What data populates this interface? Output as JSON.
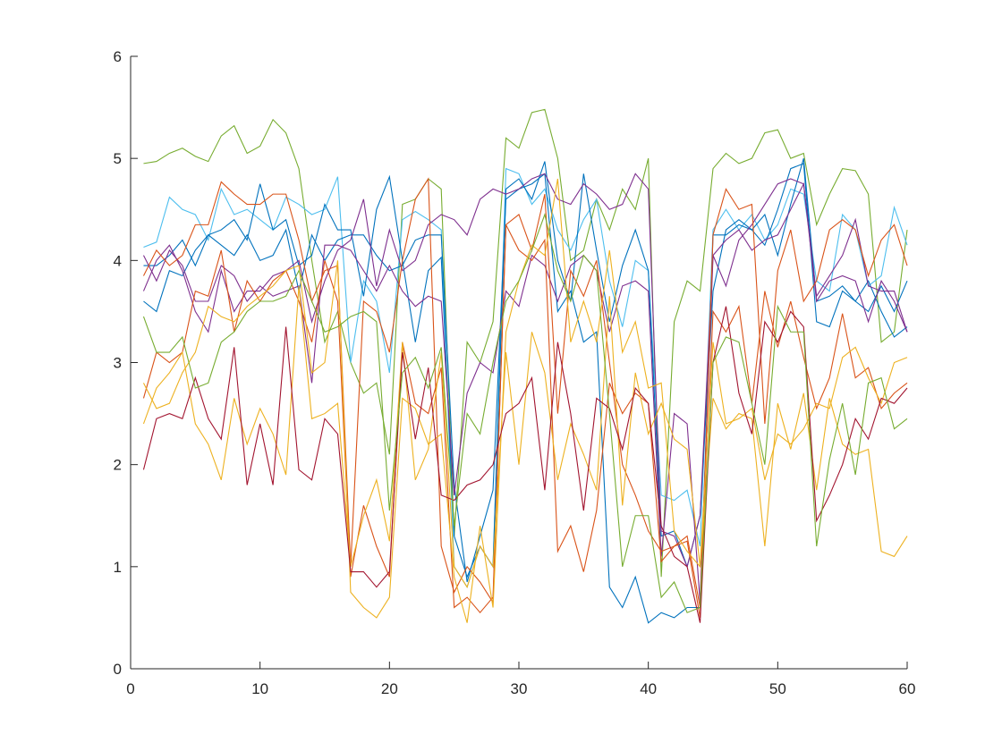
{
  "chart_data": {
    "type": "line",
    "x": [
      1,
      2,
      3,
      4,
      5,
      6,
      7,
      8,
      9,
      10,
      11,
      12,
      13,
      14,
      15,
      16,
      17,
      18,
      19,
      20,
      21,
      22,
      23,
      24,
      25,
      26,
      27,
      28,
      29,
      30,
      31,
      32,
      33,
      34,
      35,
      36,
      37,
      38,
      39,
      40,
      41,
      42,
      43,
      44,
      45,
      46,
      47,
      48,
      49,
      50,
      51,
      52,
      53,
      54,
      55,
      56,
      57,
      58,
      59,
      60
    ],
    "xlim": [
      0,
      60
    ],
    "xticks": [
      0,
      10,
      20,
      30,
      40,
      50,
      60
    ],
    "ylim": [
      0,
      6
    ],
    "yticks": [
      0,
      1,
      2,
      3,
      4,
      5,
      6
    ],
    "series": [
      {
        "color": "#77AC30",
        "values": [
          4.95,
          4.97,
          5.05,
          5.1,
          5.02,
          4.97,
          5.22,
          5.32,
          5.05,
          5.12,
          5.38,
          5.25,
          4.9,
          4.0,
          3.2,
          3.5,
          3.0,
          2.7,
          2.8,
          2.1,
          4.55,
          4.6,
          4.8,
          4.7,
          1.3,
          3.2,
          3.0,
          3.4,
          5.2,
          5.1,
          5.45,
          5.48,
          5.0,
          4.0,
          4.1,
          4.6,
          4.3,
          4.7,
          4.5,
          5.0,
          0.9,
          3.4,
          3.8,
          3.7,
          4.9,
          5.05,
          4.95,
          5.0,
          5.25,
          5.28,
          5.0,
          5.05,
          4.35,
          4.65,
          4.9,
          4.88,
          4.65,
          3.2,
          3.3,
          4.3
        ]
      },
      {
        "color": "#4DBEEE",
        "values": [
          4.13,
          4.18,
          4.62,
          4.5,
          4.45,
          4.2,
          4.7,
          4.45,
          4.5,
          4.4,
          4.3,
          4.62,
          4.55,
          4.45,
          4.5,
          4.82,
          3.0,
          3.8,
          3.6,
          2.9,
          4.4,
          4.48,
          4.4,
          4.3,
          1.0,
          0.8,
          1.2,
          1.0,
          4.9,
          4.85,
          4.55,
          4.7,
          4.3,
          4.1,
          4.4,
          4.6,
          3.8,
          3.35,
          4.0,
          3.9,
          1.7,
          1.65,
          1.75,
          1.2,
          4.3,
          4.5,
          4.3,
          4.45,
          4.2,
          4.35,
          4.7,
          4.65,
          3.8,
          3.7,
          4.45,
          4.3,
          3.75,
          3.85,
          4.52,
          4.15
        ]
      },
      {
        "color": "#0072BD",
        "values": [
          3.95,
          3.95,
          4.05,
          4.2,
          3.95,
          4.25,
          4.3,
          4.4,
          4.2,
          4.75,
          4.3,
          4.4,
          3.95,
          4.05,
          4.55,
          4.3,
          4.3,
          3.65,
          4.5,
          4.82,
          4.0,
          3.2,
          3.9,
          4.03,
          1.3,
          0.9,
          1.2,
          1.0,
          4.7,
          4.8,
          4.6,
          4.97,
          4.0,
          3.6,
          4.85,
          4.1,
          3.4,
          3.95,
          4.3,
          3.9,
          1.3,
          1.35,
          1.0,
          1.5,
          3.7,
          4.3,
          4.4,
          4.3,
          4.45,
          4.05,
          4.55,
          5.0,
          3.6,
          3.65,
          3.75,
          3.6,
          3.5,
          3.75,
          3.5,
          3.8
        ]
      },
      {
        "color": "#0072BD",
        "values": [
          3.6,
          3.5,
          3.9,
          3.85,
          4.1,
          4.25,
          4.15,
          4.05,
          4.25,
          4.0,
          4.05,
          4.3,
          3.7,
          4.25,
          4.0,
          4.2,
          4.25,
          4.25,
          4.05,
          3.9,
          3.95,
          4.2,
          4.25,
          4.25,
          1.8,
          0.85,
          1.3,
          1.75,
          4.6,
          4.7,
          4.75,
          4.85,
          3.5,
          3.7,
          3.2,
          3.3,
          0.8,
          0.6,
          0.9,
          0.45,
          0.55,
          0.5,
          0.6,
          0.6,
          4.25,
          4.25,
          4.35,
          4.3,
          4.15,
          4.5,
          4.9,
          4.95,
          3.4,
          3.35,
          3.7,
          3.6,
          3.8,
          3.5,
          3.25,
          3.35
        ]
      },
      {
        "color": "#7E2F8E",
        "values": [
          3.7,
          4.0,
          4.15,
          3.9,
          3.5,
          3.3,
          3.9,
          3.5,
          3.7,
          3.7,
          3.85,
          3.9,
          4.0,
          3.4,
          3.8,
          4.1,
          4.2,
          4.6,
          3.75,
          4.3,
          3.9,
          4.0,
          4.35,
          4.45,
          4.4,
          4.25,
          4.6,
          4.7,
          4.65,
          4.7,
          4.8,
          4.85,
          4.6,
          4.55,
          4.75,
          4.65,
          4.5,
          4.55,
          4.85,
          4.7,
          1.35,
          1.3,
          1.0,
          1.5,
          4.05,
          3.75,
          4.2,
          4.35,
          4.55,
          4.75,
          4.8,
          4.75,
          3.65,
          3.85,
          4.05,
          4.4,
          3.75,
          3.7,
          3.7,
          3.3
        ]
      },
      {
        "color": "#7E2F8E",
        "values": [
          4.05,
          3.8,
          4.1,
          3.95,
          3.6,
          3.6,
          3.95,
          3.85,
          3.6,
          3.75,
          3.65,
          3.7,
          3.75,
          2.8,
          4.15,
          4.15,
          4.1,
          3.9,
          3.7,
          3.95,
          3.7,
          3.55,
          3.65,
          3.6,
          1.7,
          2.7,
          3.0,
          2.9,
          3.7,
          3.55,
          4.05,
          3.95,
          3.6,
          3.95,
          4.05,
          3.9,
          3.3,
          3.75,
          3.8,
          3.7,
          1.1,
          2.5,
          2.4,
          0.65,
          4.05,
          4.2,
          4.3,
          4.1,
          4.2,
          4.25,
          4.5,
          4.75,
          3.6,
          3.8,
          3.85,
          3.8,
          3.4,
          3.8,
          3.6,
          3.3
        ]
      },
      {
        "color": "#D95319",
        "values": [
          2.65,
          3.1,
          3.0,
          3.1,
          3.7,
          3.65,
          4.1,
          3.3,
          3.8,
          3.6,
          3.8,
          3.9,
          3.6,
          3.2,
          4.0,
          3.6,
          0.9,
          1.6,
          1.2,
          0.9,
          3.2,
          2.6,
          2.5,
          2.95,
          0.6,
          0.7,
          0.55,
          0.7,
          4.35,
          4.1,
          4.0,
          4.2,
          1.15,
          1.4,
          0.95,
          1.55,
          2.8,
          2.5,
          2.7,
          2.6,
          1.05,
          1.2,
          1.3,
          0.6,
          3.5,
          3.3,
          3.55,
          2.6,
          3.7,
          3.15,
          3.6,
          3.05,
          2.55,
          2.85,
          3.48,
          2.85,
          2.95,
          2.55,
          2.7,
          2.8
        ]
      },
      {
        "color": "#D95319",
        "values": [
          3.85,
          4.1,
          3.95,
          4.05,
          4.35,
          4.35,
          4.77,
          4.65,
          4.55,
          4.55,
          4.65,
          4.65,
          4.2,
          3.6,
          3.9,
          3.95,
          1.0,
          3.6,
          3.5,
          3.1,
          4.0,
          4.6,
          4.8,
          1.2,
          0.75,
          1.0,
          0.85,
          0.65,
          4.35,
          4.45,
          4.1,
          4.65,
          2.5,
          3.9,
          3.65,
          4.0,
          3.0,
          2.0,
          1.7,
          1.35,
          1.15,
          1.2,
          1.25,
          0.5,
          4.25,
          4.7,
          4.5,
          4.55,
          2.4,
          3.9,
          4.3,
          3.6,
          3.8,
          4.3,
          4.4,
          4.3,
          3.85,
          4.2,
          4.35,
          3.95
        ]
      },
      {
        "color": "#EDB120",
        "values": [
          2.8,
          2.55,
          2.6,
          2.9,
          3.1,
          3.55,
          3.45,
          3.4,
          3.55,
          3.65,
          3.75,
          3.9,
          3.95,
          2.9,
          3.0,
          4.0,
          0.75,
          0.6,
          0.5,
          0.7,
          2.65,
          2.55,
          2.2,
          2.3,
          0.9,
          0.45,
          1.4,
          0.6,
          3.3,
          3.8,
          4.15,
          4.05,
          4.8,
          3.2,
          3.6,
          3.2,
          4.1,
          3.1,
          3.4,
          2.75,
          2.8,
          1.35,
          1.15,
          1.0,
          3.2,
          2.4,
          2.45,
          2.55,
          1.85,
          2.3,
          2.2,
          2.35,
          2.6,
          2.55,
          3.05,
          3.15,
          2.85,
          2.6,
          3.0,
          3.05
        ]
      },
      {
        "color": "#EDB120",
        "values": [
          2.4,
          2.75,
          2.9,
          3.1,
          2.4,
          2.2,
          1.85,
          2.65,
          2.2,
          2.55,
          2.3,
          1.9,
          3.75,
          2.45,
          2.5,
          2.6,
          1.0,
          1.5,
          1.85,
          1.25,
          3.2,
          1.85,
          2.15,
          3.1,
          1.0,
          0.8,
          1.2,
          1.0,
          3.1,
          2.0,
          3.3,
          2.9,
          1.85,
          2.4,
          2.1,
          1.75,
          3.65,
          1.6,
          2.9,
          2.3,
          2.6,
          2.25,
          2.15,
          1.0,
          2.65,
          2.35,
          2.5,
          2.45,
          1.2,
          2.6,
          2.15,
          2.7,
          1.75,
          2.65,
          2.2,
          2.1,
          2.15,
          1.15,
          1.1,
          1.3
        ]
      },
      {
        "color": "#A2142F",
        "values": [
          1.95,
          2.45,
          2.5,
          2.45,
          2.85,
          2.45,
          2.25,
          3.15,
          1.8,
          2.4,
          1.8,
          3.35,
          1.95,
          1.85,
          2.45,
          2.3,
          0.95,
          0.95,
          0.8,
          0.95,
          3.1,
          2.25,
          2.95,
          1.7,
          1.65,
          1.8,
          1.85,
          2.0,
          2.5,
          2.6,
          2.85,
          1.75,
          3.2,
          2.5,
          1.55,
          2.65,
          2.55,
          2.15,
          2.75,
          2.6,
          1.4,
          1.1,
          1.0,
          0.45,
          3.0,
          3.55,
          2.7,
          2.3,
          3.4,
          3.2,
          3.5,
          3.35,
          1.45,
          1.7,
          2.0,
          2.45,
          2.25,
          2.65,
          2.6,
          2.75
        ]
      },
      {
        "color": "#77AC30",
        "values": [
          3.45,
          3.1,
          3.1,
          3.25,
          2.75,
          2.8,
          3.2,
          3.3,
          3.5,
          3.6,
          3.6,
          3.65,
          3.9,
          3.6,
          3.3,
          3.35,
          3.45,
          3.5,
          3.4,
          1.55,
          2.9,
          3.05,
          2.75,
          3.15,
          1.4,
          2.5,
          2.3,
          3.0,
          3.6,
          3.8,
          4.1,
          4.45,
          3.9,
          3.6,
          4.05,
          3.9,
          2.5,
          1.0,
          1.5,
          1.5,
          0.7,
          0.85,
          0.55,
          0.6,
          3.0,
          3.25,
          3.2,
          2.6,
          2.0,
          3.55,
          3.3,
          3.3,
          1.2,
          2.05,
          2.6,
          1.9,
          2.8,
          2.85,
          2.35,
          2.45
        ]
      }
    ]
  }
}
